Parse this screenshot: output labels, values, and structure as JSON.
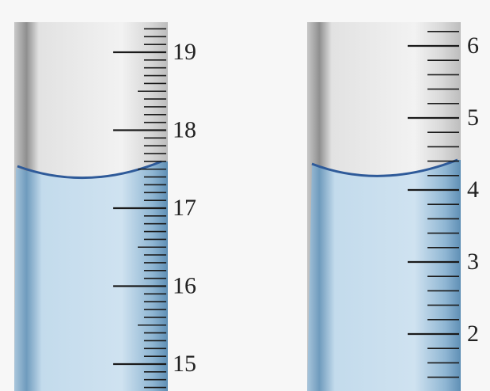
{
  "left_cylinder": {
    "scale_labels": [
      19,
      18,
      17,
      16,
      15
    ]
  },
  "right_cylinder": {
    "scale_labels": [
      6,
      5,
      4,
      3,
      2
    ]
  }
}
